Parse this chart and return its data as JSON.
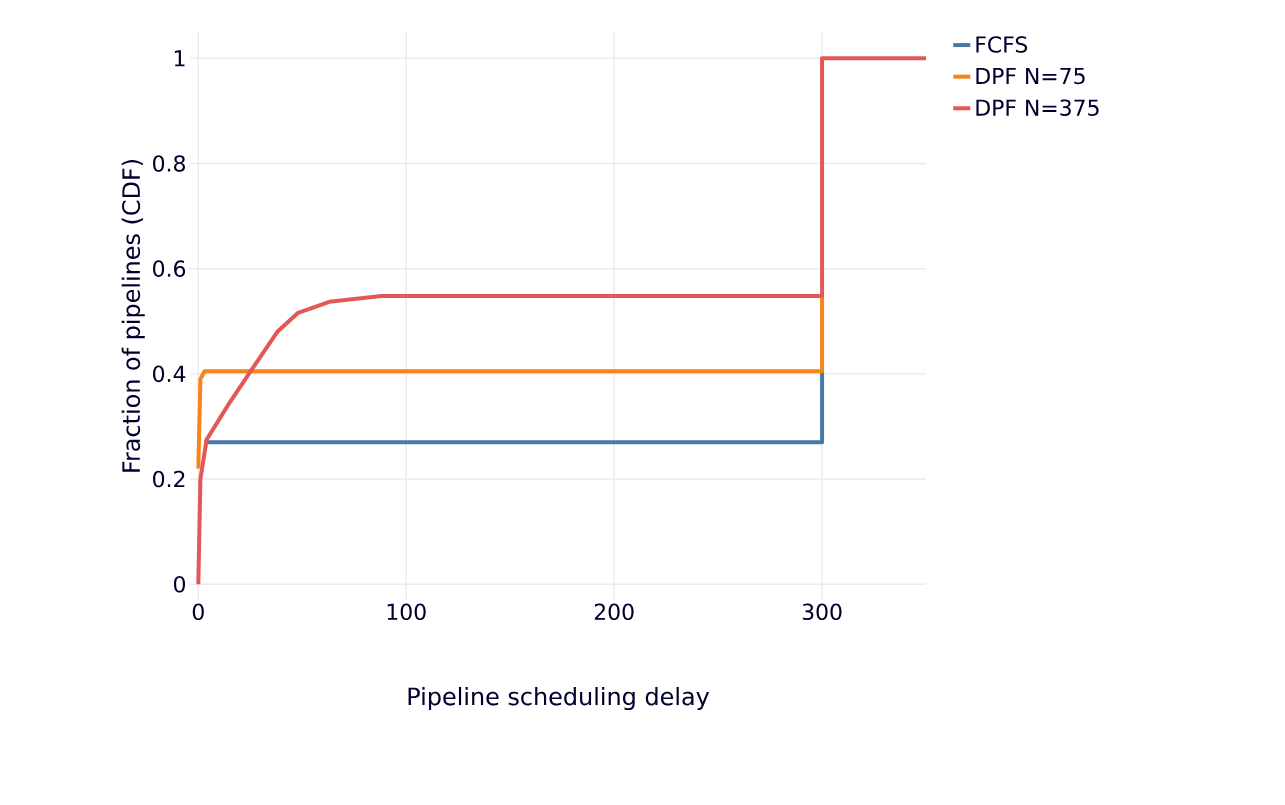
{
  "chart_data": {
    "type": "line",
    "xlabel": "Pipeline scheduling delay",
    "ylabel": "Fraction of pipelines (CDF)",
    "xlim": [
      -4,
      350
    ],
    "ylim": [
      -0.03,
      1.05
    ],
    "xticks": [
      0,
      100,
      200,
      300
    ],
    "yticks": [
      0,
      0.2,
      0.4,
      0.6,
      0.8,
      1
    ],
    "grid": true,
    "legend": "top right",
    "marker": "none",
    "line_style": "solid",
    "series": [
      {
        "name": "FCFS",
        "color": "#4c78a8",
        "x": [
          3,
          300,
          300
        ],
        "values": [
          0.27,
          0.27,
          0.405
        ]
      },
      {
        "name": "DPF N=75",
        "color": "#f58518",
        "x": [
          0,
          1,
          3,
          300,
          300
        ],
        "values": [
          0.22,
          0.39,
          0.405,
          0.405,
          0.548
        ]
      },
      {
        "name": "DPF N=375",
        "color": "#e45756",
        "x": [
          0,
          0.5,
          1,
          4,
          15,
          26,
          38,
          48,
          63,
          88,
          300,
          300,
          350
        ],
        "values": [
          0,
          0.1,
          0.2,
          0.275,
          0.345,
          0.41,
          0.48,
          0.516,
          0.537,
          0.548,
          0.548,
          1,
          1
        ]
      }
    ]
  }
}
